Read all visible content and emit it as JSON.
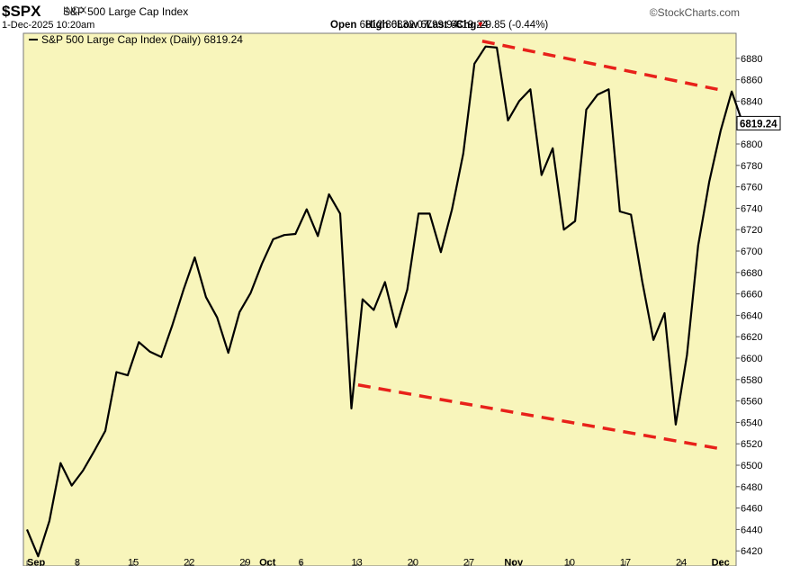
{
  "header": {
    "symbol": "$SPX",
    "name": "S&P 500 Large Cap Index",
    "exchange": "INDX",
    "datetime": "1-Dec-2025 10:20am",
    "brand": "©StockCharts.com",
    "open_label": "Open",
    "open": "6812.30",
    "high_label": "High",
    "high": "6832.07",
    "low_label": "Low",
    "low": "6799.94",
    "last_label": "Last",
    "last": "6819.24",
    "chg_label": "Chg",
    "chg": "-29.85 (-0.44%)",
    "caret": "▼"
  },
  "chart_data": {
    "type": "line",
    "legend": "S&P 500 Large Cap Index (Daily) 6819.24",
    "last_value_label": "6819.24",
    "colors": {
      "background": "#f8f5bb",
      "line": "#000000",
      "trendline": "#e8211a",
      "last_box": "#ffffff"
    },
    "ylim": [
      6410,
      6900
    ],
    "yticks": [
      6420,
      6440,
      6460,
      6480,
      6500,
      6520,
      6540,
      6560,
      6580,
      6600,
      6620,
      6640,
      6660,
      6680,
      6700,
      6720,
      6740,
      6760,
      6780,
      6800,
      6820,
      6840,
      6860,
      6880
    ],
    "xticks": [
      {
        "i": 0,
        "label": "Sep"
      },
      {
        "i": 4.5,
        "label": "8"
      },
      {
        "i": 9.5,
        "label": "15"
      },
      {
        "i": 14.5,
        "label": "22"
      },
      {
        "i": 19.5,
        "label": "29"
      },
      {
        "i": 21.5,
        "label": "Oct"
      },
      {
        "i": 24.5,
        "label": "6"
      },
      {
        "i": 29.5,
        "label": "13"
      },
      {
        "i": 34.5,
        "label": "20"
      },
      {
        "i": 39.5,
        "label": "27"
      },
      {
        "i": 43.5,
        "label": "Nov"
      },
      {
        "i": 48.5,
        "label": "10"
      },
      {
        "i": 53.5,
        "label": "17"
      },
      {
        "i": 58.5,
        "label": "24"
      },
      {
        "i": 62,
        "label": "Dec"
      }
    ],
    "series": [
      {
        "values": [
          6440,
          6415,
          6448,
          6502,
          6481,
          6495,
          6513,
          6532,
          6587,
          6584,
          6615,
          6606,
          6601,
          6631,
          6664,
          6694,
          6657,
          6638,
          6605,
          6643,
          6661,
          6688,
          6711,
          6715,
          6716,
          6739,
          6714,
          6753,
          6735,
          6553,
          6655,
          6645,
          6671,
          6629,
          6664,
          6735,
          6735,
          6699,
          6739,
          6791,
          6875,
          6891,
          6890,
          6822,
          6840,
          6851,
          6771,
          6796,
          6720,
          6728,
          6832,
          6846,
          6851,
          6737,
          6734,
          6672,
          6617,
          6642,
          6538,
          6603,
          6705,
          6765,
          6812,
          6849,
          6819
        ]
      }
    ],
    "trendlines": [
      {
        "x": [
          40.7,
          62.2
        ],
        "y": [
          6896,
          6850
        ]
      },
      {
        "x": [
          29.6,
          62.2
        ],
        "y": [
          6575,
          6515
        ]
      }
    ]
  }
}
